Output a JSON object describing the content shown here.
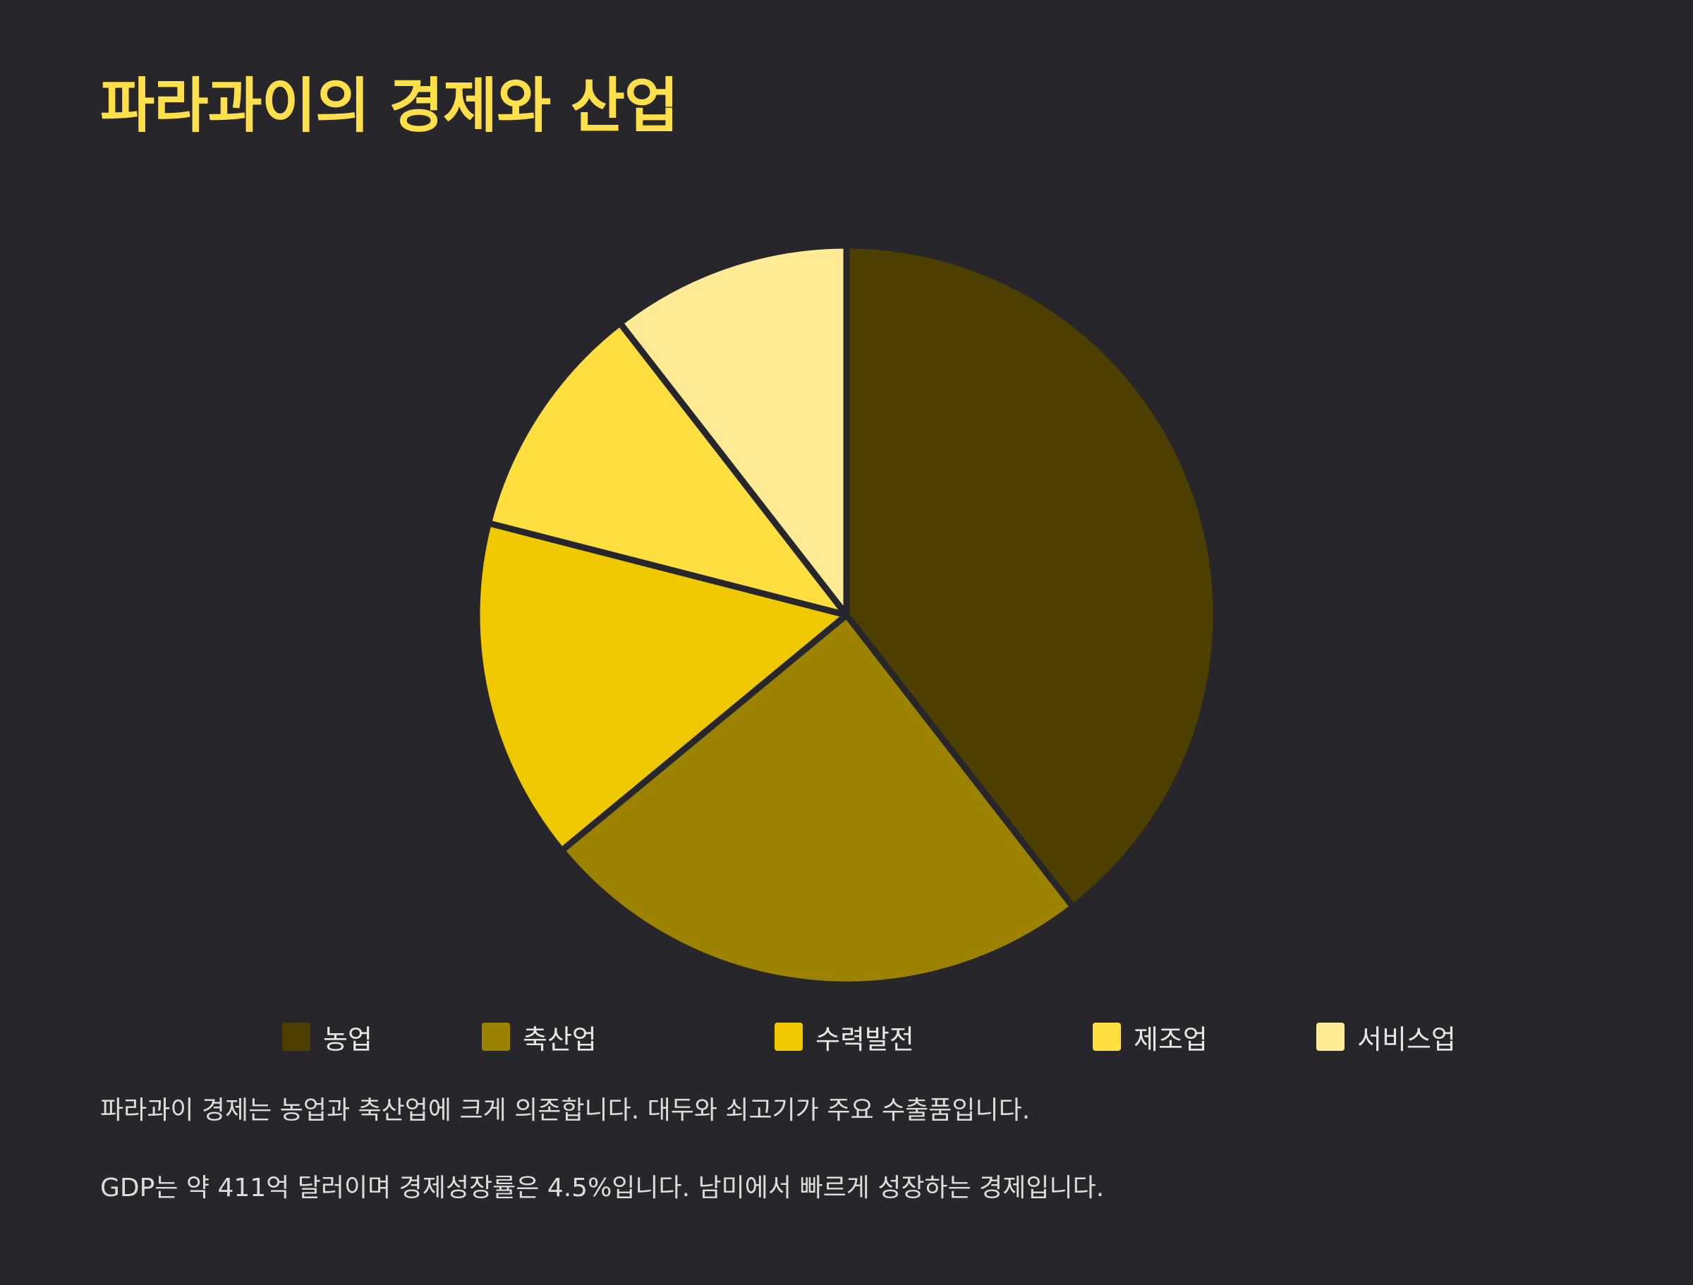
{
  "title": "파라과이의 경제와 산업",
  "chart_data": {
    "type": "pie",
    "title": "파라과이의 경제와 산업",
    "categories": [
      "농업",
      "축산업",
      "수력발전",
      "제조업",
      "서비스업"
    ],
    "values": [
      39.5,
      24.5,
      15,
      10.5,
      10.5
    ],
    "colors": [
      "#4d3f00",
      "#9c8200",
      "#f0c800",
      "#ffdf40",
      "#ffeb95"
    ],
    "start_angle": "12 o'clock",
    "direction": "clockwise",
    "legend": "bottom"
  },
  "legend": [
    {
      "label": "농업",
      "color": "#4d3f00"
    },
    {
      "label": "축산업",
      "color": "#9c8200"
    },
    {
      "label": "수력발전",
      "color": "#f0c800"
    },
    {
      "label": "제조업",
      "color": "#ffdf40"
    },
    {
      "label": "서비스업",
      "color": "#ffeb95"
    }
  ],
  "descriptions": [
    "파라과이 경제는 농업과 축산업에 크게 의존합니다. 대두와 쇠고기가 주요 수출품입니다.",
    "GDP는 약 411억 달러이며 경제성장률은 4.5%입니다. 남미에서 빠르게 성장하는 경제입니다."
  ],
  "colors": {
    "background": "#26262b",
    "title": "#ffe04a",
    "text": "#dcdcdc",
    "slice_border": "#26262b"
  }
}
